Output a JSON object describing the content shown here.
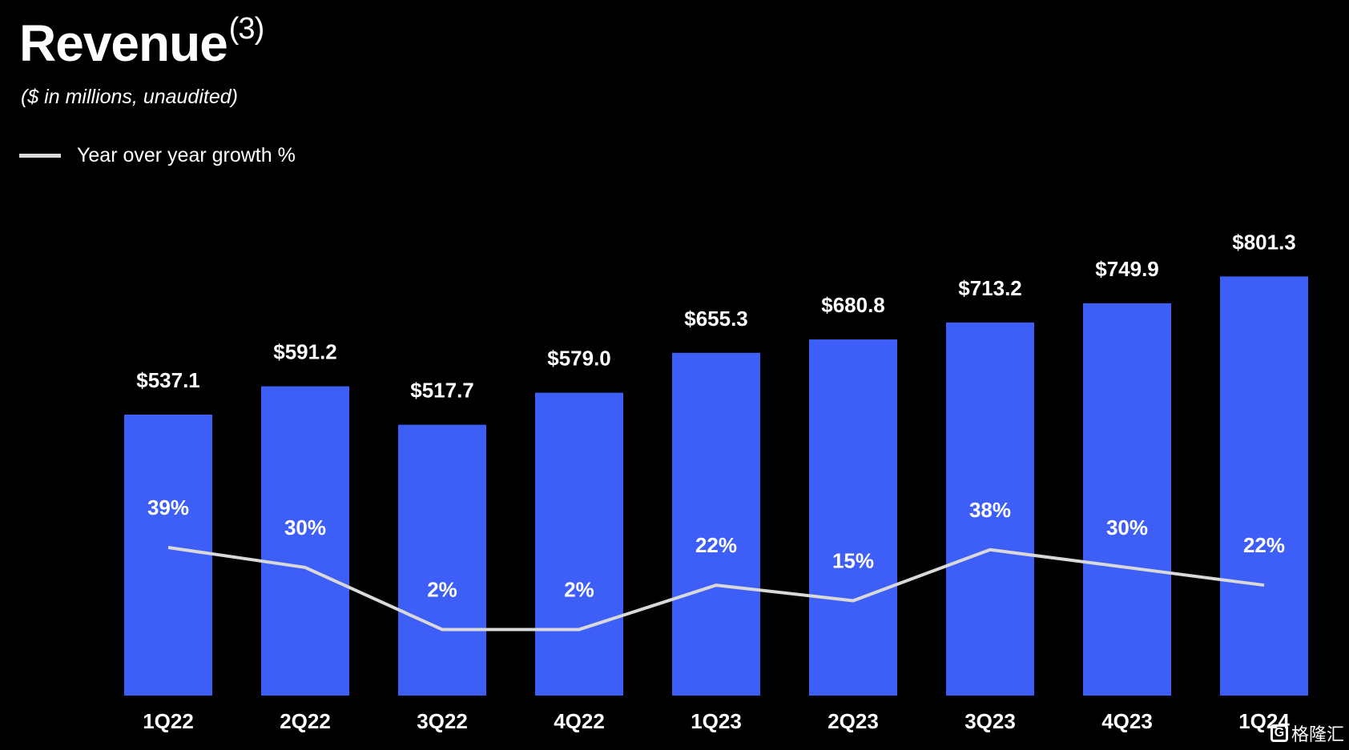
{
  "header": {
    "title": "Revenue",
    "footnote": "(3)",
    "subtitle": "($ in millions, unaudited)"
  },
  "legend": {
    "label": "Year over year growth %"
  },
  "watermark": {
    "text": "格隆汇"
  },
  "colors": {
    "bar": "#3d5ef7",
    "line": "#d9d9d9",
    "background": "#000000",
    "text": "#ffffff"
  },
  "chart_data": {
    "type": "bar",
    "categories": [
      "1Q22",
      "2Q22",
      "3Q22",
      "4Q22",
      "1Q23",
      "2Q23",
      "3Q23",
      "4Q23",
      "1Q24"
    ],
    "series": [
      {
        "type": "bar",
        "values": [
          537.1,
          591.2,
          517.7,
          579.0,
          655.3,
          680.8,
          713.2,
          749.9,
          801.3
        ],
        "labels": [
          "$537.1",
          "$591.2",
          "$517.7",
          "$579.0",
          "$655.3",
          "$680.8",
          "$713.2",
          "$749.9",
          "$801.3"
        ]
      },
      {
        "name": "Year over year growth %",
        "type": "line",
        "values": [
          39,
          30,
          2,
          2,
          22,
          15,
          38,
          30,
          22
        ],
        "labels": [
          "39%",
          "30%",
          "2%",
          "2%",
          "22%",
          "15%",
          "38%",
          "30%",
          "22%"
        ]
      }
    ],
    "grid": false,
    "legend_position": "top-left"
  }
}
